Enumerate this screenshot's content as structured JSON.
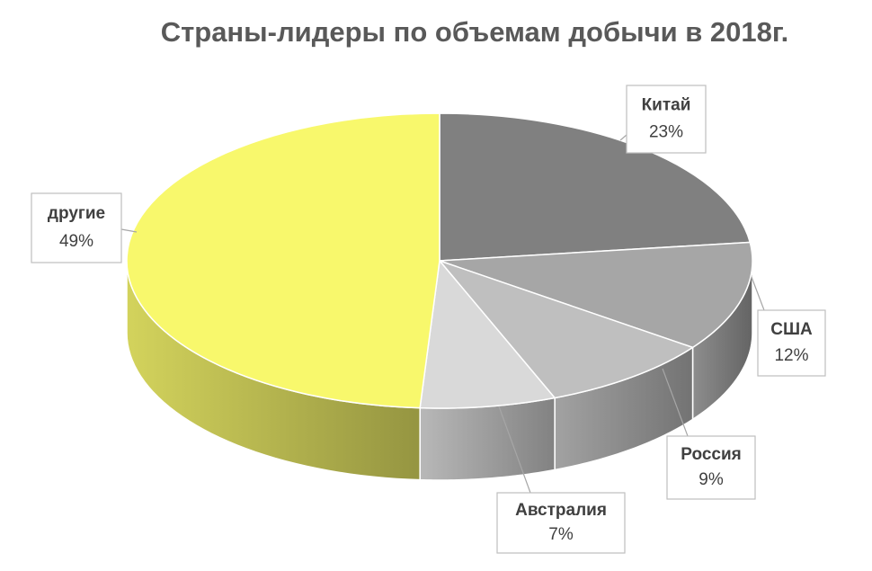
{
  "chart_data": {
    "type": "pie3d",
    "title": "Страны-лидеры по объемам добычи в 2018г.",
    "categories": [
      "Китай",
      "США",
      "Россия",
      "Австралия",
      "другие"
    ],
    "values": [
      23,
      12,
      9,
      7,
      49
    ],
    "value_labels": [
      "23%",
      "12%",
      "9%",
      "7%",
      "49%"
    ],
    "colors": [
      "#808080",
      "#a6a6a6",
      "#bfbfbf",
      "#d9d9d9",
      "#f8f86c"
    ]
  }
}
